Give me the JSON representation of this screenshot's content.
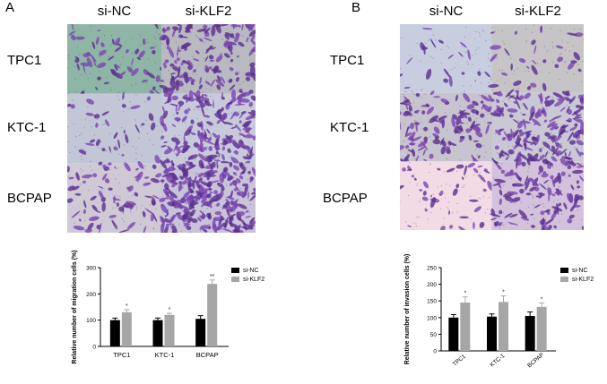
{
  "panels": [
    {
      "letter": "A",
      "columns": [
        "si-NC",
        "si-KLF2"
      ],
      "rows": [
        "TPC1",
        "KTC-1",
        "BCPAP"
      ],
      "tile_colors": [
        [
          "#8fb5a6",
          "#b9b9c2"
        ],
        [
          "#c3c6d6",
          "#c8cadb"
        ],
        [
          "#cfc9d6",
          "#c9c3da"
        ]
      ],
      "chart_data": {
        "type": "bar",
        "ylabel": "Relative number of migration cells (%)",
        "categories": [
          "TPC1",
          "KTC-1",
          "BCPAP"
        ],
        "ylim": [
          0,
          300
        ],
        "yticks": [
          0,
          100,
          200,
          300
        ],
        "legend_position": "top-right",
        "series": [
          {
            "name": "si-NC",
            "color": "#000000",
            "values": [
              100,
              100,
              105
            ],
            "errors": [
              8,
              8,
              12
            ]
          },
          {
            "name": "si-KLF2",
            "color": "#a6a6a6",
            "values": [
              130,
              120,
              238
            ],
            "errors": [
              10,
              6,
              15
            ]
          }
        ],
        "significance": [
          "*",
          "*",
          "**"
        ]
      }
    },
    {
      "letter": "B",
      "columns": [
        "si-NC",
        "si-KLF2"
      ],
      "rows": [
        "TPC1",
        "KTC-1",
        "BCPAP"
      ],
      "tile_colors": [
        [
          "#c9cde0",
          "#c6c4c7"
        ],
        [
          "#c7c4cf",
          "#c9c8d4"
        ],
        [
          "#f3dbe5",
          "#d4c2dc"
        ]
      ],
      "chart_data": {
        "type": "bar",
        "ylabel": "Relative number of invasion cells (%)",
        "categories": [
          "TPC1",
          "KTC-1",
          "BCPAP"
        ],
        "ylim": [
          0,
          250
        ],
        "yticks": [
          0,
          50,
          100,
          150,
          200,
          250
        ],
        "legend_position": "top-right",
        "series": [
          {
            "name": "si-NC",
            "color": "#000000",
            "values": [
              100,
              103,
              105
            ],
            "errors": [
              9,
              8,
              12
            ]
          },
          {
            "name": "si-KLF2",
            "color": "#a6a6a6",
            "values": [
              145,
              147,
              132
            ],
            "errors": [
              17,
              18,
              12
            ]
          }
        ],
        "significance": [
          "*",
          "*",
          "*"
        ]
      }
    }
  ]
}
